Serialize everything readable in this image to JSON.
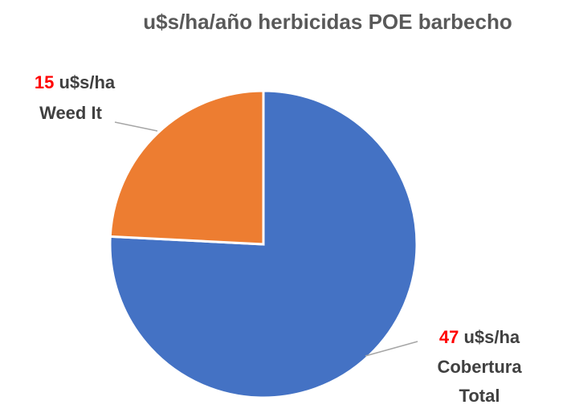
{
  "chart_data": {
    "type": "pie",
    "title": "u$s/ha/año herbicidas POE barbecho",
    "unit": "u$s/ha",
    "categories": [
      "Cobertura Total",
      "Weed It"
    ],
    "values": [
      47,
      15
    ],
    "colors": [
      "#4472c4",
      "#ed7d31"
    ],
    "value_color": "#ff0000"
  }
}
